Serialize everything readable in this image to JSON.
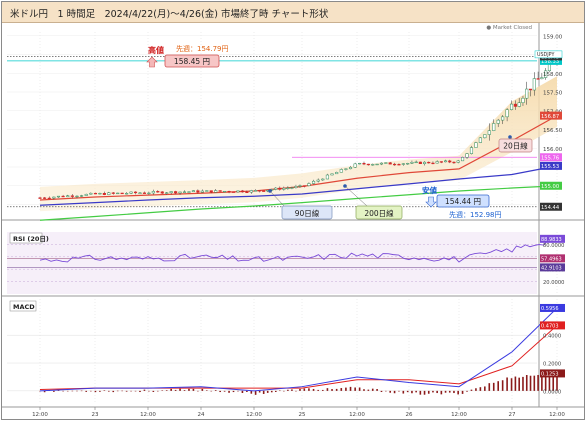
{
  "title": "米ドル円　1 時間足　2024/4/22(月)～4/26(金) 市場終了時 チャート形状",
  "market_status": "● Market Closed",
  "colors": {
    "candle_up": "#2e8b57",
    "candle_down": "#d62828",
    "ma20": "#e04838",
    "ma90": "#3a3ac8",
    "ma200": "#44cc44",
    "rsi": "#7a4ad8",
    "macd": "#3a3ae0",
    "signal": "#e02020",
    "histogram": "#8b1a1a",
    "current": "#00c8c8"
  },
  "annotations": {
    "high_label": "高値",
    "high_value": "158.45 円",
    "prev_week_high": "先週：154.79円",
    "low_label": "安値",
    "low_value": "154.44 円",
    "prev_week_low": "先週：152.98円",
    "ma20_label": "20日線",
    "ma90_label": "90日線",
    "ma200_label": "200日線"
  },
  "price_tags": {
    "symbol": "USDJPY",
    "current": "158.33",
    "high": "158.45",
    "ma20": "156.87",
    "magenta": "155.76",
    "ma90": "155.53",
    "ma200": "155.00",
    "low": "154.44"
  },
  "price_axis_ticks": [
    "159.00",
    "158.50",
    "158.00",
    "157.50",
    "157.00",
    "156.50",
    "156.00",
    "155.50",
    "155.00",
    "154.50"
  ],
  "x_axis_ticks": [
    "12:00",
    "23",
    "12:00",
    "24",
    "12:00",
    "25",
    "12:00",
    "26",
    "12:00",
    "27",
    "12:00"
  ],
  "rsi": {
    "title": "RSI (20日)",
    "ticks": [
      "80.0000",
      "60.0000",
      "40.0000",
      "20.0000"
    ],
    "tag_current": "88.9833",
    "tag_upper": "57.4963",
    "tag_lower": "42.9103"
  },
  "macd": {
    "title": "MACD",
    "ticks": [
      "0.4000",
      "0.2000",
      "0.0000"
    ],
    "tag_macd": "0.5956",
    "tag_signal": "0.4703",
    "tag_hist": "0.1253"
  },
  "chart_data": {
    "type": "line",
    "x": [
      "4/22 12:00",
      "4/23",
      "4/23 12:00",
      "4/24",
      "4/24 12:00",
      "4/25",
      "4/25 12:00",
      "4/26",
      "4/26 12:00",
      "4/27",
      "4/27 12:00"
    ],
    "series": [
      {
        "values": [
          154.68,
          154.78,
          154.82,
          154.85,
          154.86,
          154.98,
          155.58,
          155.6,
          155.65,
          157.15,
          158.33
        ]
      },
      {
        "values": [
          154.62,
          154.7,
          154.75,
          154.8,
          154.86,
          154.98,
          155.2,
          155.35,
          155.45,
          156.2,
          156.87
        ]
      },
      {
        "values": [
          154.48,
          154.55,
          154.62,
          154.68,
          154.72,
          154.78,
          154.92,
          155.05,
          155.18,
          155.3,
          155.53
        ]
      },
      {
        "values": [
          154.08,
          154.18,
          154.28,
          154.38,
          154.46,
          154.55,
          154.66,
          154.76,
          154.86,
          154.94,
          155.0
        ]
      }
    ],
    "ylim": [
      154.3,
      159.1
    ],
    "rsi_values": [
      55,
      58,
      57,
      60,
      55,
      58,
      63,
      60,
      56,
      72,
      88.98
    ],
    "macd_values": [
      0.0,
      0.02,
      0.02,
      0.03,
      0.0,
      0.03,
      0.1,
      0.06,
      0.03,
      0.28,
      0.5956
    ],
    "signal_values": [
      0.01,
      0.02,
      0.02,
      0.02,
      0.02,
      0.02,
      0.08,
      0.08,
      0.05,
      0.18,
      0.4703
    ],
    "histogram_values": [
      0.0,
      0.0,
      0.0,
      0.01,
      -0.02,
      0.01,
      0.02,
      -0.02,
      -0.02,
      0.1,
      0.1253
    ]
  }
}
